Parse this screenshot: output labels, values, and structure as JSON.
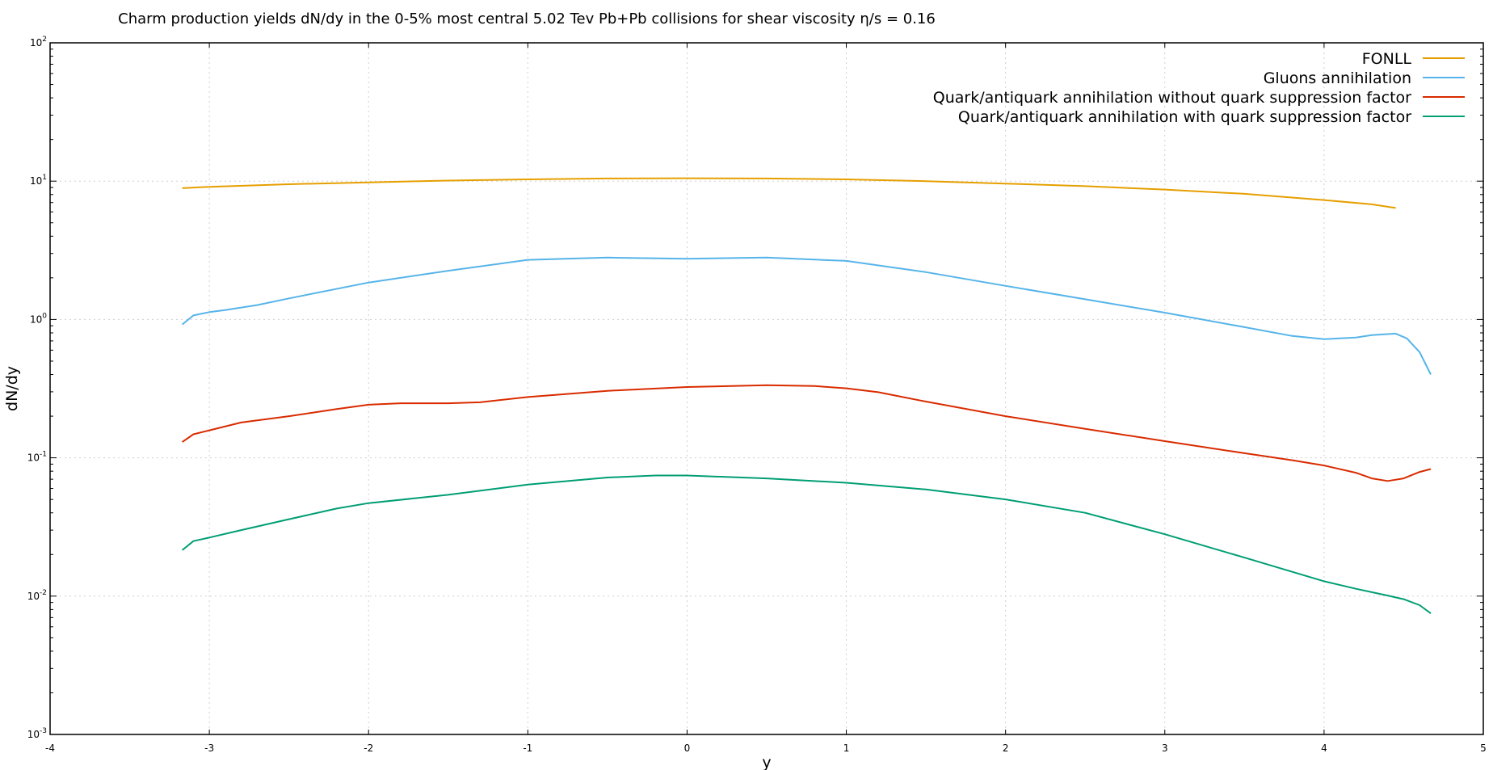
{
  "chart_data": {
    "type": "line",
    "title": "Charm production yields dN/dy in the 0-5% most central 5.02 Tev Pb+Pb collisions for shear viscosity η/s = 0.16",
    "xlabel": "y",
    "ylabel": "dN/dy",
    "xlim": [
      -4,
      5
    ],
    "ylim": [
      0.001,
      100
    ],
    "yscale": "log",
    "grid": true,
    "legend_position": "top-right",
    "x_ticks": [
      "-4",
      "-3",
      "-2",
      "-1",
      "0",
      "1",
      "2",
      "3",
      "4",
      "5"
    ],
    "x_tick_values": [
      -4,
      -3,
      -2,
      -1,
      0,
      1,
      2,
      3,
      4,
      5
    ],
    "y_ticks": [
      {
        "base": "10",
        "exp": "-3"
      },
      {
        "base": "10",
        "exp": "-2"
      },
      {
        "base": "10",
        "exp": "-1"
      },
      {
        "base": "10",
        "exp": "0"
      },
      {
        "base": "10",
        "exp": "1"
      },
      {
        "base": "10",
        "exp": "2"
      }
    ],
    "y_tick_values": [
      0.001,
      0.01,
      0.1,
      1,
      10,
      100
    ],
    "series": [
      {
        "name": "FONLL",
        "color": "#e69f00",
        "x": [
          -3.17,
          -3.0,
          -2.5,
          -2.0,
          -1.5,
          -1.0,
          -0.5,
          0.0,
          0.5,
          1.0,
          1.5,
          2.0,
          2.5,
          3.0,
          3.5,
          4.0,
          4.3,
          4.45
        ],
        "y": [
          8.9,
          9.1,
          9.5,
          9.8,
          10.1,
          10.3,
          10.45,
          10.5,
          10.45,
          10.3,
          10.0,
          9.6,
          9.2,
          8.7,
          8.1,
          7.3,
          6.8,
          6.4
        ]
      },
      {
        "name": "Gluons annihilation",
        "color": "#56b4e9",
        "x": [
          -3.17,
          -3.1,
          -3.0,
          -2.9,
          -2.7,
          -2.5,
          -2.0,
          -1.5,
          -1.0,
          -0.5,
          0.0,
          0.5,
          1.0,
          1.5,
          2.0,
          2.5,
          3.0,
          3.5,
          3.8,
          4.0,
          4.2,
          4.3,
          4.45,
          4.52,
          4.6,
          4.67
        ],
        "y": [
          0.92,
          1.07,
          1.13,
          1.17,
          1.27,
          1.42,
          1.85,
          2.25,
          2.7,
          2.8,
          2.75,
          2.8,
          2.65,
          2.2,
          1.75,
          1.4,
          1.12,
          0.88,
          0.76,
          0.72,
          0.74,
          0.77,
          0.79,
          0.73,
          0.58,
          0.4
        ]
      },
      {
        "name": "Quark/antiquark annihilation without quark suppression factor",
        "color": "#d92b00",
        "x": [
          -3.17,
          -3.1,
          -3.0,
          -2.8,
          -2.5,
          -2.2,
          -2.0,
          -1.8,
          -1.5,
          -1.3,
          -1.0,
          -0.5,
          0.0,
          0.5,
          0.8,
          1.0,
          1.2,
          1.5,
          2.0,
          2.5,
          3.0,
          3.5,
          3.8,
          4.0,
          4.2,
          4.3,
          4.4,
          4.5,
          4.6,
          4.67
        ],
        "y": [
          0.13,
          0.148,
          0.158,
          0.18,
          0.2,
          0.225,
          0.242,
          0.248,
          0.248,
          0.252,
          0.275,
          0.305,
          0.325,
          0.335,
          0.33,
          0.318,
          0.298,
          0.255,
          0.2,
          0.162,
          0.132,
          0.108,
          0.096,
          0.088,
          0.078,
          0.071,
          0.068,
          0.071,
          0.079,
          0.083
        ]
      },
      {
        "name": "Quark/antiquark annihilation with quark suppression factor",
        "color": "#009e73",
        "x": [
          -3.17,
          -3.1,
          -3.0,
          -2.8,
          -2.5,
          -2.2,
          -2.0,
          -1.5,
          -1.0,
          -0.5,
          -0.2,
          0.0,
          0.5,
          1.0,
          1.5,
          2.0,
          2.5,
          3.0,
          3.5,
          4.0,
          4.2,
          4.4,
          4.5,
          4.6,
          4.67
        ],
        "y": [
          0.0215,
          0.025,
          0.0265,
          0.03,
          0.036,
          0.043,
          0.047,
          0.054,
          0.064,
          0.072,
          0.0745,
          0.0745,
          0.071,
          0.066,
          0.059,
          0.05,
          0.04,
          0.028,
          0.019,
          0.0128,
          0.0113,
          0.0101,
          0.0095,
          0.0086,
          0.0075
        ]
      }
    ]
  }
}
